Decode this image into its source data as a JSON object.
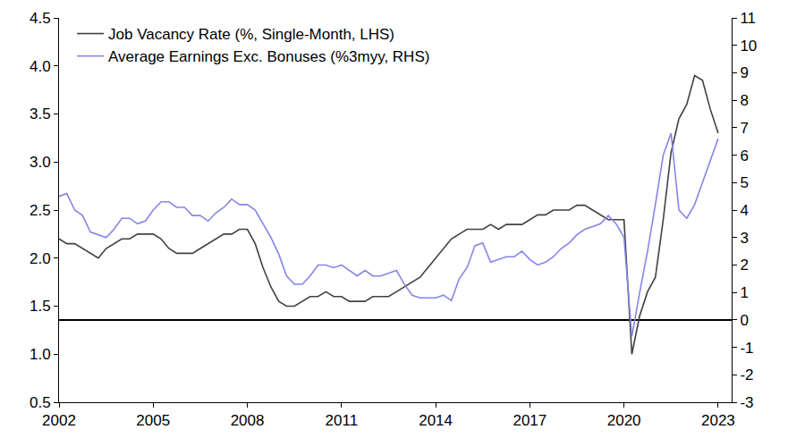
{
  "chart_data": {
    "type": "line",
    "x": [
      2002,
      2002.25,
      2002.5,
      2002.75,
      2003,
      2003.25,
      2003.5,
      2003.75,
      2004,
      2004.25,
      2004.5,
      2004.75,
      2005,
      2005.25,
      2005.5,
      2005.75,
      2006,
      2006.25,
      2006.5,
      2006.75,
      2007,
      2007.25,
      2007.5,
      2007.75,
      2008,
      2008.25,
      2008.5,
      2008.75,
      2009,
      2009.25,
      2009.5,
      2009.75,
      2010,
      2010.25,
      2010.5,
      2010.75,
      2011,
      2011.25,
      2011.5,
      2011.75,
      2012,
      2012.25,
      2012.5,
      2012.75,
      2013,
      2013.25,
      2013.5,
      2013.75,
      2014,
      2014.25,
      2014.5,
      2014.75,
      2015,
      2015.25,
      2015.5,
      2015.75,
      2016,
      2016.25,
      2016.5,
      2016.75,
      2017,
      2017.25,
      2017.5,
      2017.75,
      2018,
      2018.25,
      2018.5,
      2018.75,
      2019,
      2019.25,
      2019.5,
      2019.75,
      2020,
      2020.25,
      2020.5,
      2020.75,
      2021,
      2021.25,
      2021.5,
      2021.75,
      2022,
      2022.25,
      2022.5,
      2022.75,
      2023
    ],
    "series": [
      {
        "name": "Job Vacancy Rate (%, Single-Month, LHS)",
        "color": "#404040",
        "axis": "y",
        "values": [
          2.2,
          2.15,
          2.15,
          2.1,
          2.05,
          2.0,
          2.1,
          2.15,
          2.2,
          2.2,
          2.25,
          2.25,
          2.25,
          2.2,
          2.1,
          2.05,
          2.05,
          2.05,
          2.1,
          2.15,
          2.2,
          2.25,
          2.25,
          2.3,
          2.3,
          2.15,
          1.9,
          1.7,
          1.55,
          1.5,
          1.5,
          1.55,
          1.6,
          1.6,
          1.65,
          1.6,
          1.6,
          1.55,
          1.55,
          1.55,
          1.6,
          1.6,
          1.6,
          1.65,
          1.7,
          1.75,
          1.8,
          1.9,
          2.0,
          2.1,
          2.2,
          2.25,
          2.3,
          2.3,
          2.3,
          2.35,
          2.3,
          2.35,
          2.35,
          2.35,
          2.4,
          2.45,
          2.45,
          2.5,
          2.5,
          2.5,
          2.55,
          2.55,
          2.5,
          2.45,
          2.4,
          2.4,
          2.4,
          1.0,
          1.4,
          1.65,
          1.8,
          2.4,
          3.1,
          3.45,
          3.6,
          3.9,
          3.85,
          3.55,
          3.3
        ]
      },
      {
        "name": "Average Earnings Exc. Bonuses (%3myy, RHS)",
        "color": "#8585e6",
        "axis": "y2",
        "values": [
          4.5,
          4.6,
          4.0,
          3.8,
          3.2,
          3.1,
          3.0,
          3.3,
          3.7,
          3.7,
          3.5,
          3.6,
          4.0,
          4.3,
          4.3,
          4.1,
          4.1,
          3.8,
          3.8,
          3.6,
          3.9,
          4.1,
          4.4,
          4.2,
          4.2,
          4.0,
          3.5,
          3.0,
          2.4,
          1.6,
          1.3,
          1.3,
          1.6,
          2.0,
          2.0,
          1.9,
          2.0,
          1.8,
          1.6,
          1.8,
          1.6,
          1.6,
          1.7,
          1.8,
          1.3,
          0.9,
          0.8,
          0.8,
          0.8,
          0.9,
          0.7,
          1.5,
          1.9,
          2.7,
          2.8,
          2.1,
          2.2,
          2.3,
          2.3,
          2.5,
          2.2,
          2.0,
          2.1,
          2.3,
          2.6,
          2.8,
          3.1,
          3.3,
          3.4,
          3.5,
          3.8,
          3.5,
          3.0,
          -0.6,
          1.0,
          2.5,
          4.2,
          6.0,
          6.8,
          4.0,
          3.7,
          4.2,
          5.0,
          5.8,
          6.6
        ]
      }
    ],
    "xlim": [
      2002,
      2023.43
    ],
    "xticks": [
      2002,
      2005,
      2008,
      2011,
      2014,
      2017,
      2020,
      2023
    ],
    "ylim": [
      0.5,
      4.5
    ],
    "yticks": [
      0.5,
      {
        "value": 1,
        "label": "1.0"
      },
      1.5,
      {
        "value": 2,
        "label": "2.0"
      },
      2.5,
      {
        "value": 3,
        "label": "3.0"
      },
      3.5,
      {
        "value": 4,
        "label": "4.0"
      },
      4.5
    ],
    "y2lim": [
      -3,
      11
    ],
    "y2ticks": [
      -3,
      -2,
      -1,
      0,
      1,
      2,
      3,
      4,
      5,
      6,
      7,
      8,
      9,
      10,
      11
    ],
    "grid": false,
    "legend": "top-left"
  }
}
